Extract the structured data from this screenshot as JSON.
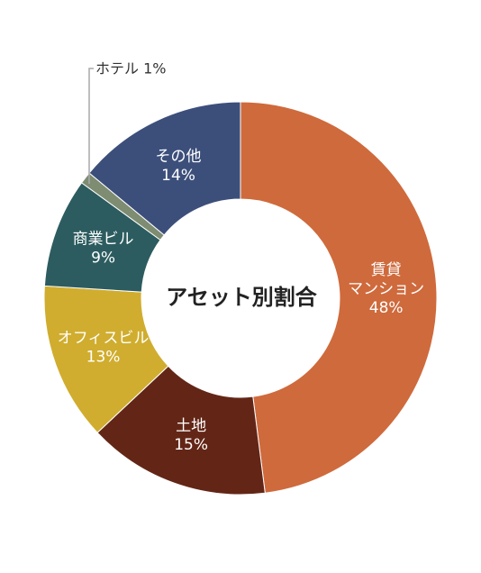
{
  "chart_data": {
    "type": "pie",
    "title": "アセット別割合",
    "unit": "%",
    "slices": [
      {
        "name": "賃貸マンション",
        "lines": [
          "賃貸",
          "マンション"
        ],
        "value": 48,
        "value_label": "48%",
        "color": "#cf6a3c"
      },
      {
        "name": "土地",
        "lines": [
          "土地"
        ],
        "value": 15,
        "value_label": "15%",
        "color": "#632616"
      },
      {
        "name": "オフィスビル",
        "lines": [
          "オフィスビル"
        ],
        "value": 13,
        "value_label": "13%",
        "color": "#d0ad2e"
      },
      {
        "name": "商業ビル",
        "lines": [
          "商業ビル"
        ],
        "value": 9,
        "value_label": "9%",
        "color": "#2c5c5f"
      },
      {
        "name": "ホテル",
        "lines": [],
        "value": 1,
        "value_label": "1%",
        "color": "#7e8c72",
        "callout": "ホテル 1%"
      },
      {
        "name": "その他",
        "lines": [
          "その他"
        ],
        "value": 14,
        "value_label": "14%",
        "color": "#3c4f7b"
      }
    ]
  }
}
